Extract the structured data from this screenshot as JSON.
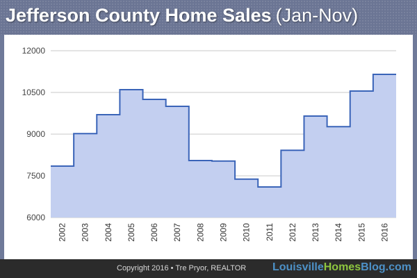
{
  "header": {
    "title_main": "Jefferson County Home Sales",
    "title_sub": "(Jan-Nov)"
  },
  "footer": {
    "copyright": "Copyright 2016 • Tre Pryor, REALTOR",
    "brand_part1": "Louisville",
    "brand_part2": "Homes",
    "brand_part3": "Blog.com"
  },
  "colors": {
    "line": "#3a64b8",
    "fill": "#c3cff0",
    "grid": "#c8c8c8",
    "header_bg": "#6b7594"
  },
  "chart_data": {
    "type": "area",
    "step": true,
    "title": "Jefferson County Home Sales (Jan-Nov)",
    "xlabel": "",
    "ylabel": "",
    "categories": [
      "2002",
      "2003",
      "2004",
      "2005",
      "2006",
      "2007",
      "2008",
      "2009",
      "2010",
      "2011",
      "2012",
      "2013",
      "2014",
      "2015",
      "2016"
    ],
    "values": [
      7850,
      9020,
      9700,
      10600,
      10250,
      10000,
      8050,
      8030,
      7380,
      7100,
      8420,
      9650,
      9270,
      10550,
      11150
    ],
    "ylim": [
      6000,
      12000
    ],
    "yticks": [
      6000,
      7500,
      9000,
      10500,
      12000
    ],
    "grid": true,
    "legend": "none"
  }
}
